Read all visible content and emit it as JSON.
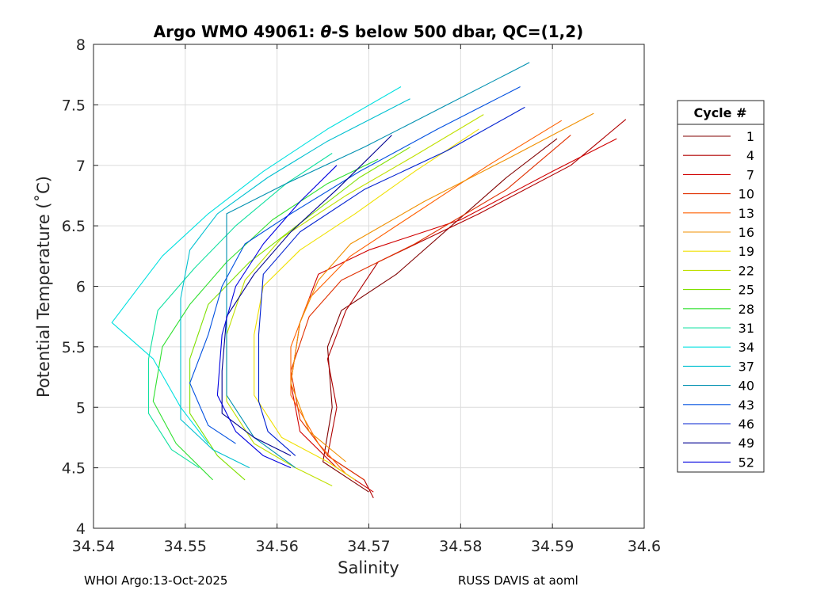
{
  "chart_data": {
    "type": "line",
    "title": "Argo WMO 49061: θ-S below 500 dbar,  QC=(1,2)",
    "title_parts": {
      "pre": "Argo WMO 49061: ",
      "theta": "θ",
      "post": "-S below 500 dbar,  QC=(1,2)"
    },
    "xlabel": "Salinity",
    "ylabel": "Potential Temperature (˚C)",
    "xlim": [
      34.54,
      34.6
    ],
    "ylim": [
      4,
      8
    ],
    "xticks": [
      34.54,
      34.55,
      34.56,
      34.57,
      34.58,
      34.59,
      34.6
    ],
    "xtick_labels": [
      "34.54",
      "34.55",
      "34.56",
      "34.57",
      "34.58",
      "34.59",
      "34.6"
    ],
    "yticks": [
      4,
      4.5,
      5,
      5.5,
      6,
      6.5,
      7,
      7.5,
      8
    ],
    "ytick_labels": [
      "4",
      "4.5",
      "5",
      "5.5",
      "6",
      "6.5",
      "7",
      "7.5",
      "8"
    ],
    "grid": true,
    "legend_title": "Cycle #",
    "legend_position": "right-outside",
    "series": [
      {
        "name": "1",
        "color": "#800000",
        "points": [
          [
            34.5905,
            7.22
          ],
          [
            34.585,
            6.9
          ],
          [
            34.573,
            6.1
          ],
          [
            34.567,
            5.8
          ],
          [
            34.5655,
            5.5
          ],
          [
            34.566,
            5.0
          ],
          [
            34.565,
            4.55
          ],
          [
            34.568,
            4.4
          ],
          [
            34.57,
            4.3
          ]
        ]
      },
      {
        "name": "4",
        "color": "#b00000",
        "points": [
          [
            34.598,
            7.38
          ],
          [
            34.592,
            7.0
          ],
          [
            34.582,
            6.6
          ],
          [
            34.571,
            6.2
          ],
          [
            34.5675,
            5.8
          ],
          [
            34.5655,
            5.4
          ],
          [
            34.5665,
            5.0
          ],
          [
            34.5655,
            4.6
          ],
          [
            34.5695,
            4.4
          ],
          [
            34.5705,
            4.25
          ]
        ]
      },
      {
        "name": "7",
        "color": "#d00000",
        "points": [
          [
            34.597,
            7.22
          ],
          [
            34.59,
            6.95
          ],
          [
            34.58,
            6.55
          ],
          [
            34.57,
            6.3
          ],
          [
            34.5645,
            6.1
          ],
          [
            34.5625,
            5.7
          ],
          [
            34.5615,
            5.2
          ],
          [
            34.5625,
            4.8
          ],
          [
            34.5665,
            4.5
          ],
          [
            34.5705,
            4.3
          ]
        ]
      },
      {
        "name": "10",
        "color": "#e03000",
        "points": [
          [
            34.592,
            7.25
          ],
          [
            34.585,
            6.8
          ],
          [
            34.575,
            6.35
          ],
          [
            34.567,
            6.05
          ],
          [
            34.5635,
            5.75
          ],
          [
            34.5615,
            5.3
          ],
          [
            34.5625,
            4.9
          ],
          [
            34.5655,
            4.6
          ],
          [
            34.5695,
            4.4
          ]
        ]
      },
      {
        "name": "13",
        "color": "#ff6000",
        "points": [
          [
            34.591,
            7.37
          ],
          [
            34.583,
            7.0
          ],
          [
            34.574,
            6.55
          ],
          [
            34.568,
            6.25
          ],
          [
            34.5635,
            5.9
          ],
          [
            34.5615,
            5.5
          ],
          [
            34.5615,
            5.1
          ],
          [
            34.5645,
            4.7
          ],
          [
            34.5675,
            4.45
          ]
        ]
      },
      {
        "name": "16",
        "color": "#f09000",
        "points": [
          [
            34.5945,
            7.43
          ],
          [
            34.585,
            7.05
          ],
          [
            34.576,
            6.7
          ],
          [
            34.568,
            6.35
          ],
          [
            34.5645,
            6.05
          ],
          [
            34.5625,
            5.7
          ],
          [
            34.5615,
            5.2
          ],
          [
            34.5635,
            4.8
          ],
          [
            34.5675,
            4.55
          ]
        ]
      },
      {
        "name": "19",
        "color": "#f0e000",
        "points": [
          [
            34.582,
            7.3
          ],
          [
            34.575,
            6.95
          ],
          [
            34.5685,
            6.6
          ],
          [
            34.5625,
            6.3
          ],
          [
            34.5585,
            6.0
          ],
          [
            34.5575,
            5.6
          ],
          [
            34.5575,
            5.1
          ],
          [
            34.5605,
            4.75
          ],
          [
            34.5655,
            4.55
          ],
          [
            34.5685,
            4.4
          ]
        ]
      },
      {
        "name": "22",
        "color": "#c0e000",
        "points": [
          [
            34.5825,
            7.42
          ],
          [
            34.575,
            7.08
          ],
          [
            34.5675,
            6.75
          ],
          [
            34.5605,
            6.4
          ],
          [
            34.5565,
            6.05
          ],
          [
            34.5545,
            5.6
          ],
          [
            34.5545,
            5.05
          ],
          [
            34.5575,
            4.7
          ],
          [
            34.562,
            4.5
          ],
          [
            34.566,
            4.35
          ]
        ]
      },
      {
        "name": "25",
        "color": "#80e000",
        "points": [
          [
            34.5745,
            7.15
          ],
          [
            34.569,
            6.9
          ],
          [
            34.563,
            6.55
          ],
          [
            34.557,
            6.2
          ],
          [
            34.5525,
            5.85
          ],
          [
            34.5505,
            5.4
          ],
          [
            34.5505,
            4.95
          ],
          [
            34.5535,
            4.6
          ],
          [
            34.5565,
            4.4
          ]
        ]
      },
      {
        "name": "28",
        "color": "#30e030",
        "points": [
          [
            34.571,
            7.05
          ],
          [
            34.5655,
            6.85
          ],
          [
            34.5595,
            6.55
          ],
          [
            34.5545,
            6.2
          ],
          [
            34.5505,
            5.85
          ],
          [
            34.5475,
            5.5
          ],
          [
            34.5465,
            5.05
          ],
          [
            34.549,
            4.7
          ],
          [
            34.553,
            4.4
          ]
        ]
      },
      {
        "name": "31",
        "color": "#10e0a0",
        "points": [
          [
            34.566,
            7.1
          ],
          [
            34.561,
            6.85
          ],
          [
            34.5555,
            6.5
          ],
          [
            34.551,
            6.15
          ],
          [
            34.547,
            5.8
          ],
          [
            34.546,
            5.4
          ],
          [
            34.546,
            4.95
          ],
          [
            34.5485,
            4.65
          ],
          [
            34.5515,
            4.5
          ]
        ]
      },
      {
        "name": "34",
        "color": "#00e0e0",
        "points": [
          [
            34.5735,
            7.65
          ],
          [
            34.5655,
            7.3
          ],
          [
            34.5585,
            6.95
          ],
          [
            34.5525,
            6.6
          ],
          [
            34.5475,
            6.25
          ],
          [
            34.5445,
            5.95
          ],
          [
            34.542,
            5.7
          ],
          [
            34.5465,
            5.4
          ],
          [
            34.5495,
            5.0
          ],
          [
            34.5525,
            4.7
          ]
        ]
      },
      {
        "name": "37",
        "color": "#00c0d0",
        "points": [
          [
            34.5745,
            7.55
          ],
          [
            34.5655,
            7.2
          ],
          [
            34.559,
            6.9
          ],
          [
            34.5535,
            6.6
          ],
          [
            34.5505,
            6.3
          ],
          [
            34.5495,
            5.9
          ],
          [
            34.5495,
            5.4
          ],
          [
            34.5495,
            4.9
          ],
          [
            34.553,
            4.65
          ],
          [
            34.557,
            4.5
          ]
        ]
      },
      {
        "name": "40",
        "color": "#0090b0",
        "points": [
          [
            34.5875,
            7.85
          ],
          [
            34.5785,
            7.5
          ],
          [
            34.5695,
            7.15
          ],
          [
            34.561,
            6.85
          ],
          [
            34.5545,
            6.6
          ],
          [
            34.5545,
            6.1
          ],
          [
            34.5545,
            5.6
          ],
          [
            34.5545,
            5.1
          ],
          [
            34.5575,
            4.75
          ],
          [
            34.562,
            4.5
          ]
        ]
      },
      {
        "name": "43",
        "color": "#0050e0",
        "points": [
          [
            34.5865,
            7.65
          ],
          [
            34.5775,
            7.3
          ],
          [
            34.569,
            6.95
          ],
          [
            34.5615,
            6.6
          ],
          [
            34.5565,
            6.35
          ],
          [
            34.554,
            6.0
          ],
          [
            34.5525,
            5.6
          ],
          [
            34.5505,
            5.2
          ],
          [
            34.5525,
            4.85
          ],
          [
            34.5555,
            4.7
          ]
        ]
      },
      {
        "name": "46",
        "color": "#0020d0",
        "points": [
          [
            34.587,
            7.48
          ],
          [
            34.5785,
            7.12
          ],
          [
            34.5695,
            6.8
          ],
          [
            34.5625,
            6.45
          ],
          [
            34.5585,
            6.1
          ],
          [
            34.558,
            5.6
          ],
          [
            34.558,
            5.05
          ],
          [
            34.559,
            4.8
          ],
          [
            34.562,
            4.6
          ]
        ]
      },
      {
        "name": "49",
        "color": "#000090",
        "points": [
          [
            34.5725,
            7.25
          ],
          [
            34.5665,
            6.8
          ],
          [
            34.5615,
            6.45
          ],
          [
            34.5575,
            6.1
          ],
          [
            34.5545,
            5.75
          ],
          [
            34.554,
            5.3
          ],
          [
            34.554,
            4.95
          ],
          [
            34.5575,
            4.75
          ],
          [
            34.5615,
            4.6
          ]
        ]
      },
      {
        "name": "52",
        "color": "#0000e0",
        "points": [
          [
            34.5665,
            7.0
          ],
          [
            34.5625,
            6.7
          ],
          [
            34.5585,
            6.35
          ],
          [
            34.5555,
            6.0
          ],
          [
            34.554,
            5.6
          ],
          [
            34.5535,
            5.1
          ],
          [
            34.5555,
            4.8
          ],
          [
            34.5585,
            4.6
          ],
          [
            34.5615,
            4.5
          ]
        ]
      }
    ]
  },
  "footer": {
    "left": "WHOI Argo:13-Oct-2025",
    "right": "RUSS DAVIS at aoml"
  }
}
